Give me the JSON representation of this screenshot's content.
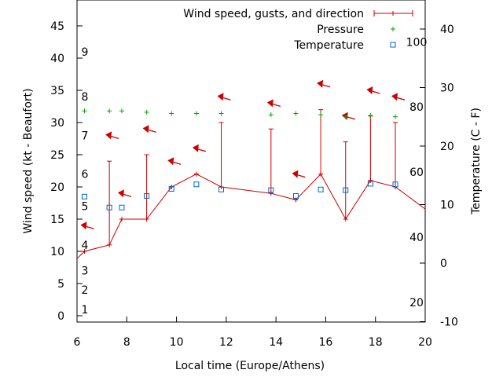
{
  "chart_data": {
    "type": "line",
    "xlabel": "Local time (Europe/Athens)",
    "ylabel_left": "Wind speed (kt - Beaufort)",
    "ylabel_right": "Temperature (C - F)",
    "xlim": [
      6,
      20
    ],
    "ylim_left": [
      -1,
      48
    ],
    "ylim_right_celsius": [
      -10,
      45
    ],
    "x_ticks": [
      6,
      8,
      10,
      12,
      14,
      16,
      18,
      20
    ],
    "y_left_ticks": [
      0,
      5,
      10,
      15,
      20,
      25,
      30,
      35,
      40,
      45
    ],
    "y_right_ticks": [
      -10,
      0,
      10,
      20,
      30,
      40
    ],
    "beaufort_labels": [
      {
        "label": "1",
        "kt": 1
      },
      {
        "label": "2",
        "kt": 4
      },
      {
        "label": "3",
        "kt": 7
      },
      {
        "label": "4",
        "kt": 11
      },
      {
        "label": "5",
        "kt": 17
      },
      {
        "label": "6",
        "kt": 22
      },
      {
        "label": "7",
        "kt": 28
      },
      {
        "label": "8",
        "kt": 34
      },
      {
        "label": "9",
        "kt": 41
      }
    ],
    "fahrenheit_labels": [
      {
        "label": "20",
        "celsius": -6.7
      },
      {
        "label": "40",
        "celsius": 4.4
      },
      {
        "label": "60",
        "celsius": 15.6
      },
      {
        "label": "80",
        "celsius": 26.7
      },
      {
        "label": "100",
        "celsius": 37.8
      }
    ],
    "legend": {
      "placement": "top-right",
      "entries": [
        "Wind speed, gusts, and direction",
        "Pressure",
        "Temperature"
      ]
    },
    "colors": {
      "wind": "#cc0000",
      "pressure": "#00aa00",
      "temperature": "#0066cc"
    },
    "series": [
      {
        "name": "Wind speed, gusts, and direction",
        "points": [
          {
            "x": 5.5,
            "y": 7
          },
          {
            "x": 6.3,
            "y": 10,
            "gust": 10,
            "arrow_y": 14
          },
          {
            "x": 7.3,
            "y": 11,
            "gust": 24,
            "arrow_y": 28
          },
          {
            "x": 7.8,
            "y": 15,
            "gust": 15,
            "arrow_y": 19
          },
          {
            "x": 8.8,
            "y": 15,
            "gust": 25,
            "arrow_y": 29
          },
          {
            "x": 9.8,
            "y": 20,
            "gust": 20,
            "arrow_y": 24
          },
          {
            "x": 10.8,
            "y": 22,
            "gust": 22,
            "arrow_y": 26
          },
          {
            "x": 11.8,
            "y": 20,
            "gust": 30,
            "arrow_y": 34
          },
          {
            "x": 13.8,
            "y": 19,
            "gust": 29,
            "arrow_y": 33
          },
          {
            "x": 14.8,
            "y": 18,
            "gust": 18,
            "arrow_y": 22
          },
          {
            "x": 15.8,
            "y": 22,
            "gust": 32,
            "arrow_y": 36
          },
          {
            "x": 16.8,
            "y": 15,
            "gust": 27,
            "arrow_y": 31
          },
          {
            "x": 17.8,
            "y": 21,
            "gust": 31,
            "arrow_y": 35
          },
          {
            "x": 18.8,
            "y": 20,
            "gust": 30,
            "arrow_y": 34
          },
          {
            "x": 20.2,
            "y": 16
          }
        ]
      },
      {
        "name": "Pressure",
        "x": [
          6.3,
          7.3,
          7.8,
          8.8,
          9.8,
          10.8,
          11.8,
          13.8,
          14.8,
          15.8,
          16.8,
          17.8,
          18.8
        ],
        "y": [
          31.8,
          31.8,
          31.8,
          31.6,
          31.4,
          31.4,
          31.4,
          31.2,
          31.4,
          31.2,
          30.9,
          31.1,
          30.9
        ]
      },
      {
        "name": "Temperature",
        "x": [
          6.3,
          7.3,
          7.8,
          8.8,
          9.8,
          10.8,
          11.8,
          13.8,
          14.8,
          15.8,
          16.8,
          17.8,
          18.8
        ],
        "y": [
          18.5,
          16.8,
          16.8,
          18.6,
          19.7,
          20.4,
          19.6,
          19.5,
          18.6,
          19.6,
          19.5,
          20.5,
          20.4
        ]
      }
    ]
  }
}
